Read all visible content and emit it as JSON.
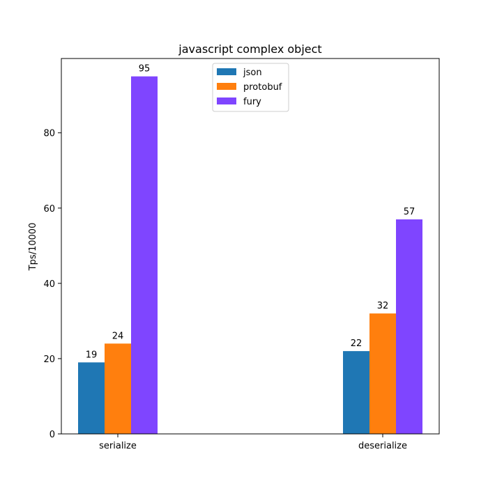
{
  "chart_data": {
    "type": "bar",
    "title": "javascript complex object",
    "xlabel": "",
    "ylabel": "Tps/10000",
    "categories": [
      "serialize",
      "deserialize"
    ],
    "series": [
      {
        "name": "json",
        "color": "#1f77b4",
        "values": [
          19,
          22
        ]
      },
      {
        "name": "protobuf",
        "color": "#ff7f0e",
        "values": [
          24,
          32
        ]
      },
      {
        "name": "fury",
        "color": "#7f45ff",
        "values": [
          95,
          57
        ]
      }
    ],
    "ylim": [
      0,
      99.75
    ],
    "yticks": [
      0,
      20,
      40,
      60,
      80
    ],
    "grid": false,
    "legend_position": "top-center",
    "data_labels": true
  }
}
